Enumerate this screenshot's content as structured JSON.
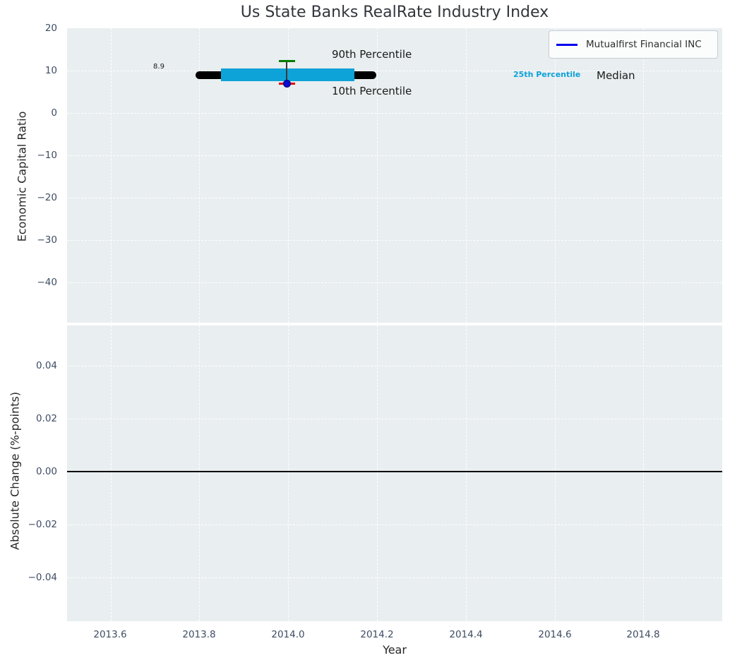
{
  "chart": {
    "title": "Us State Banks RealRate Industry Index",
    "xlabel": "Year",
    "xticks": [
      "2013.6",
      "2013.8",
      "2014.0",
      "2014.2",
      "2014.4",
      "2014.6",
      "2014.8"
    ],
    "top": {
      "ylabel": "Economic Capital Ratio",
      "yticks": [
        "20",
        "10",
        "0",
        "−10",
        "−20",
        "−30",
        "−40"
      ],
      "legend_label": "Mutualfirst Financial INC",
      "annotations": {
        "median_value": "8.9",
        "p90": "90th Percentile",
        "p10": "10th Percentile",
        "p25": "25th Percentile",
        "median": "Median"
      }
    },
    "bottom": {
      "ylabel": "Absolute Change (%-points)",
      "yticks": [
        "0.04",
        "0.02",
        "0.00",
        "−0.02",
        "−0.04"
      ]
    }
  },
  "colors": {
    "plot_background": "#e9eef0",
    "gridline": "#ffffff",
    "tick_label": "#3d4c63",
    "median": "#000000",
    "percentile_band": "#0da2d8",
    "p90_cap": "#007d02",
    "p10_cap": "#e30000",
    "company_point": "#0000cd",
    "legend_line": "#0000ee",
    "zero_line": "#000000"
  },
  "chart_data": {
    "type": "line",
    "title": "Us State Banks RealRate Industry Index",
    "xlabel": "Year",
    "xlim": [
      2013.5,
      2014.97
    ],
    "xticks": [
      2013.6,
      2013.8,
      2014.0,
      2014.2,
      2014.4,
      2014.6,
      2014.8
    ],
    "grid": true,
    "legend_position": "upper right",
    "subplots": [
      {
        "ylabel": "Economic Capital Ratio",
        "ylim": [
          -49.5,
          20
        ],
        "yticks": [
          20,
          10,
          0,
          -10,
          -20,
          -30,
          -40
        ],
        "series": [
          {
            "name": "Mutualfirst Financial INC",
            "style": "point",
            "color": "#0000cd",
            "x": [
              2014.0
            ],
            "y": [
              6.9
            ]
          },
          {
            "name": "Median",
            "style": "thick_line",
            "color": "#000000",
            "x": [
              2013.79,
              2014.21
            ],
            "y": [
              8.9,
              8.9
            ]
          },
          {
            "name": "25th-75th Percentile band",
            "style": "band",
            "color": "#0da2d8",
            "x": [
              2013.85,
              2014.15
            ],
            "y_low": 7.5,
            "y_high": 10.5
          },
          {
            "name": "90th Percentile",
            "style": "whisker_cap",
            "color": "#007d02",
            "x": [
              2014.0
            ],
            "y": [
              12.2
            ]
          },
          {
            "name": "10th Percentile",
            "style": "whisker_cap",
            "color": "#e30000",
            "x": [
              2014.0
            ],
            "y": [
              7.0
            ]
          }
        ],
        "annotations": [
          {
            "text": "8.9",
            "x": 2013.71,
            "y": 8.9
          },
          {
            "text": "90th Percentile",
            "x": 2014.1,
            "y": 13.5
          },
          {
            "text": "10th Percentile",
            "x": 2014.1,
            "y": 5.0
          },
          {
            "text": "25th Percentile",
            "x": 2014.51,
            "y": 8.9
          },
          {
            "text": "Median",
            "x": 2014.69,
            "y": 8.9
          }
        ]
      },
      {
        "ylabel": "Absolute Change (%-points)",
        "ylim": [
          -0.057,
          0.055
        ],
        "yticks": [
          0.04,
          0.02,
          0.0,
          -0.02,
          -0.04
        ],
        "series": [],
        "zero_line_y": 0.0
      }
    ]
  }
}
